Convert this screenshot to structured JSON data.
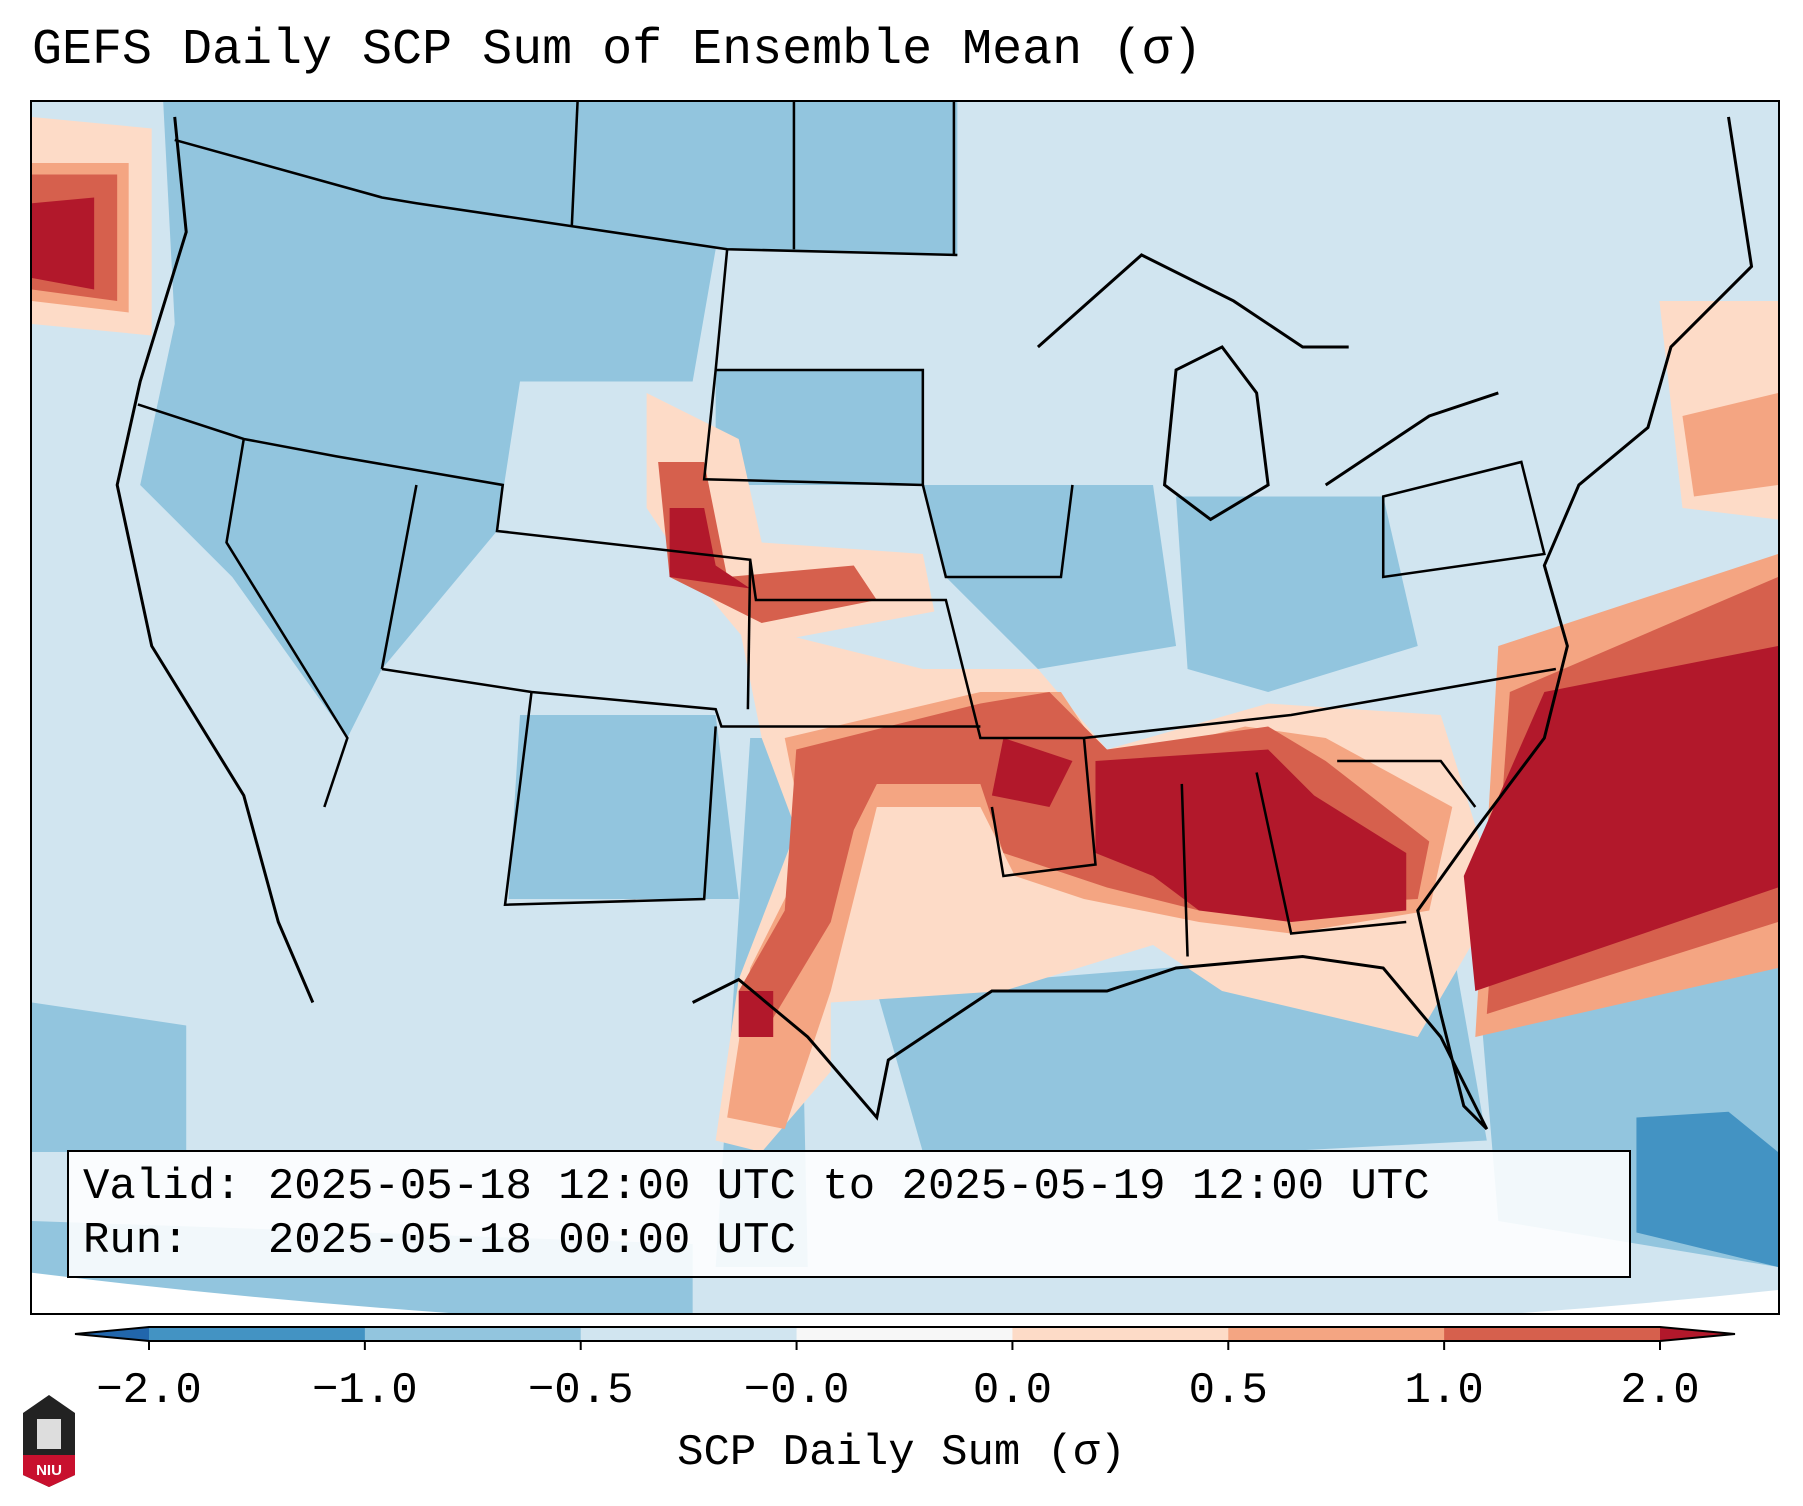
{
  "chart_data": {
    "type": "heatmap",
    "title": "GEFS Daily SCP Sum of Ensemble Mean (σ)",
    "colorbar": {
      "label": "SCP Daily Sum (σ)",
      "tick_labels": [
        "-2.0",
        "-1.0",
        "-0.5",
        "-0.0",
        "0.0",
        "0.5",
        "1.0",
        "2.0"
      ],
      "bounds": [
        -2.0,
        -1.0,
        -0.5,
        -0.0,
        0.0,
        0.5,
        1.0,
        2.0
      ],
      "colors": [
        "#4393c3",
        "#92c5de",
        "#d1e5f0",
        "#f7f7f7",
        "#fddbc7",
        "#f4a582",
        "#d6604d"
      ],
      "under_color": "#2166ac",
      "over_color": "#b2182b",
      "extend": "both"
    },
    "region": "Contiguous United States",
    "highlights": [
      {
        "area": "Mid-South / Tennessee Valley / Alabama / Georgia",
        "level": "> 2.0"
      },
      {
        "area": "Western Atlantic off the Southeast coast",
        "level": "> 2.0"
      },
      {
        "area": "Southern Plains Kansas-Oklahoma-west Texas",
        "level": "0.5 to 2.0"
      },
      {
        "area": "Front Range Wyoming/Colorado",
        "level": "1.0 to > 2.0"
      },
      {
        "area": "Northeast Pacific offshore",
        "level": "> 2.0"
      }
    ]
  },
  "info_box": {
    "valid_line": "Valid: 2025-05-18 12:00 UTC to 2025-05-19 12:00 UTC",
    "run_line": "Run:   2025-05-18 00:00 UTC"
  },
  "logo": {
    "text": "NIU",
    "colors": {
      "top": "#222222",
      "bottom": "#c8102e"
    }
  }
}
